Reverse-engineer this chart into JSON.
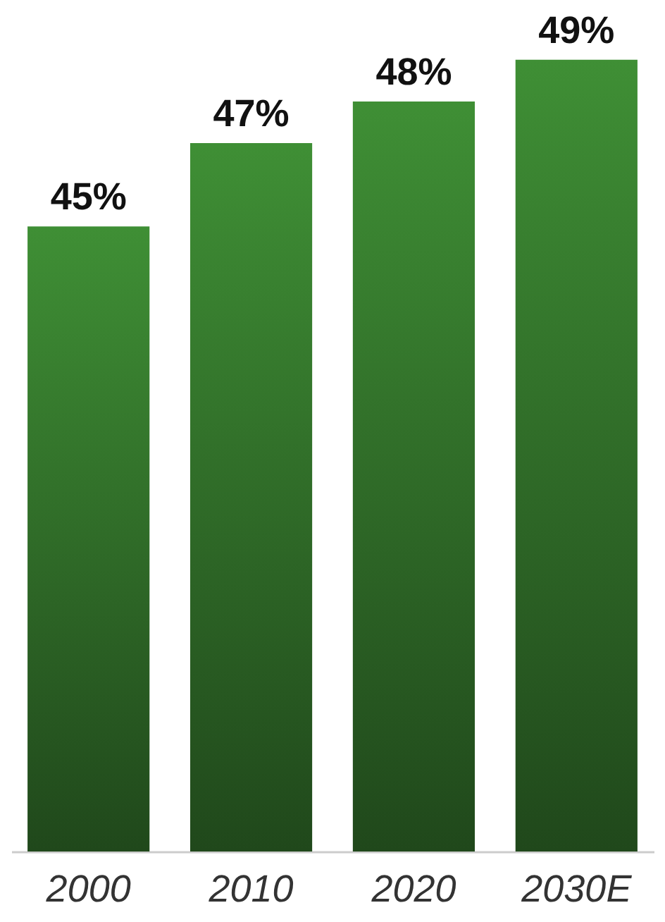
{
  "chart_data": {
    "type": "bar",
    "categories": [
      "2000",
      "2010",
      "2020",
      "2030E"
    ],
    "values": [
      45,
      47,
      48,
      49
    ],
    "value_labels": [
      "45%",
      "47%",
      "48%",
      "49%"
    ],
    "color": "#3f8f35",
    "ylim": [
      30,
      50.3
    ],
    "tick_labels": "x",
    "grid": false
  }
}
